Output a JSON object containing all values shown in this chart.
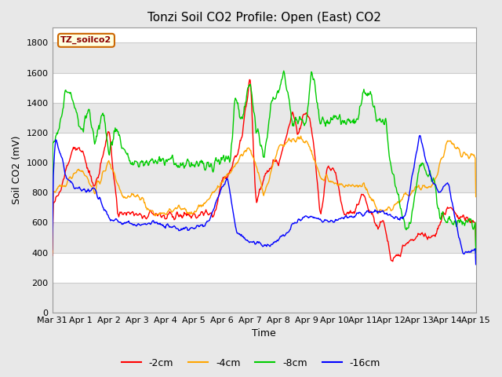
{
  "title": "Tonzi Soil CO2 Profile: Open (East) CO2",
  "ylabel": "Soil CO2 (mV)",
  "xlabel": "Time",
  "legend_label": "TZ_soilco2",
  "ylim": [
    0,
    1900
  ],
  "yticks": [
    0,
    200,
    400,
    600,
    800,
    1000,
    1200,
    1400,
    1600,
    1800
  ],
  "background_color": "#e8e8e8",
  "plot_bg_color": "#ffffff",
  "grid_color": "#d0d0d0",
  "series_colors": {
    "-2cm": "#ff0000",
    "-4cm": "#ffa500",
    "-8cm": "#00cc00",
    "-16cm": "#0000ff"
  },
  "legend_entries": [
    "-2cm",
    "-4cm",
    "-8cm",
    "-16cm"
  ],
  "x_tick_labels": [
    "Mar 31",
    "Apr 1",
    "Apr 2",
    "Apr 3",
    "Apr 4",
    "Apr 5",
    "Apr 6",
    "Apr 7",
    "Apr 8",
    "Apr 9",
    "Apr 10",
    "Apr 11",
    "Apr 12",
    "Apr 13",
    "Apr 14",
    "Apr 15"
  ],
  "title_fontsize": 11,
  "label_fontsize": 9,
  "tick_fontsize": 8,
  "linewidth": 1.0,
  "figsize": [
    6.4,
    4.8
  ],
  "dpi": 100
}
